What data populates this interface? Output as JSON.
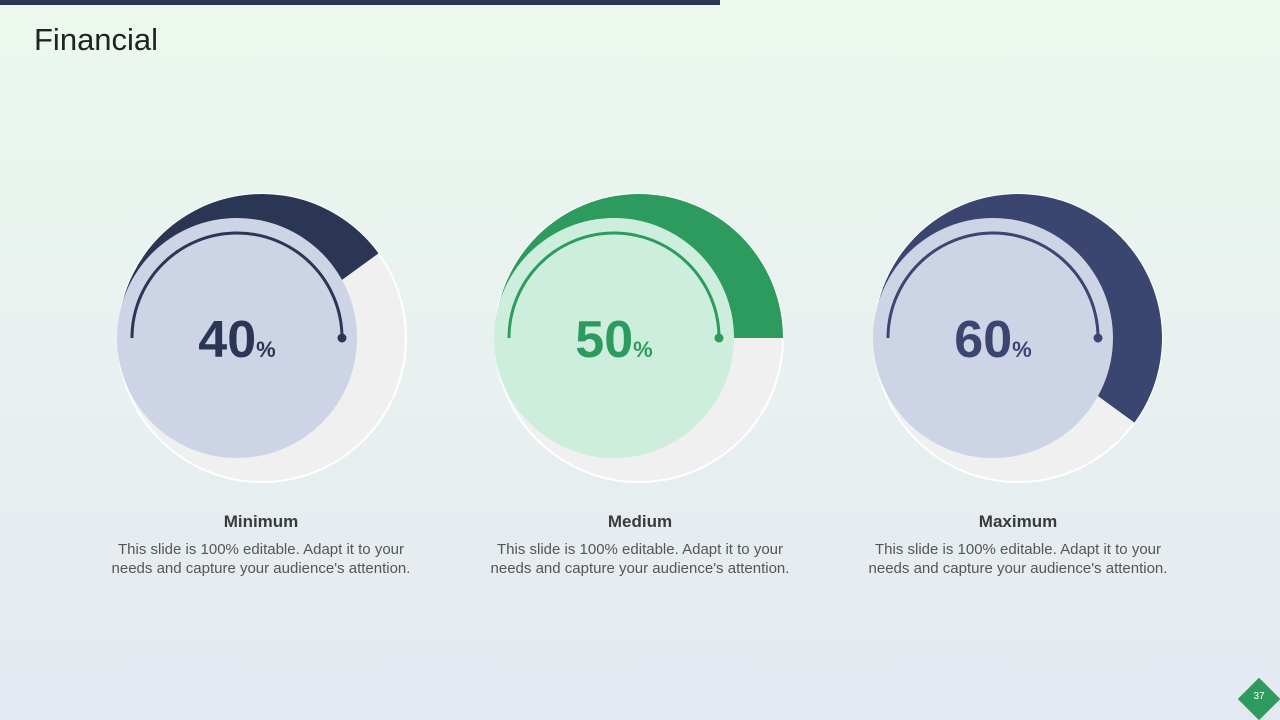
{
  "title": "Financial",
  "page_number": "37",
  "colors": {
    "navy": "#2b3655",
    "green": "#2e9b5e",
    "blue": "#3a4670",
    "track": "#f0f0f0"
  },
  "gauges": [
    {
      "value": "40",
      "unit": "%",
      "fraction": 0.4,
      "label": "Minimum",
      "text": "This slide is 100% editable. Adapt it to your needs and capture your audience's attention.",
      "color": "#2b3655",
      "inner": "#cdd4e5"
    },
    {
      "value": "50",
      "unit": "%",
      "fraction": 0.5,
      "label": "Medium",
      "text": "This slide is 100% editable. Adapt it to your needs and capture your audience's attention.",
      "color": "#2e9b5e",
      "inner": "#cdeedd"
    },
    {
      "value": "60",
      "unit": "%",
      "fraction": 0.6,
      "label": "Maximum",
      "text": "This slide is 100% editable. Adapt it to your needs and capture your audience's attention.",
      "color": "#3a4670",
      "inner": "#cdd4e5"
    }
  ]
}
